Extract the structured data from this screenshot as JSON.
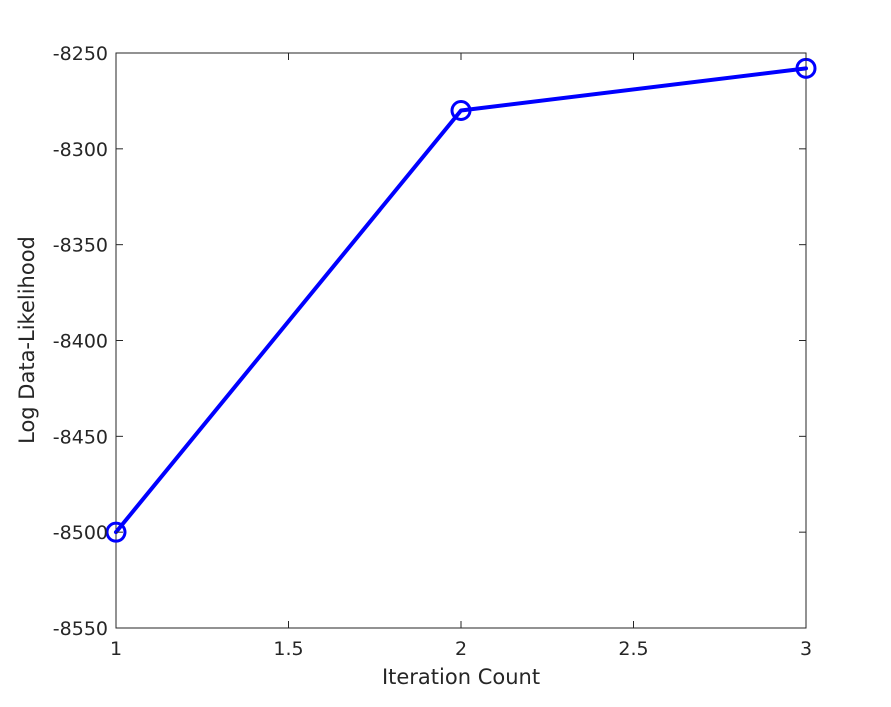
{
  "chart_data": {
    "type": "line",
    "title": "",
    "xlabel": "Iteration Count",
    "ylabel": "Log Data-Likelihood",
    "xlim": [
      1,
      3
    ],
    "ylim": [
      -8550,
      -8250
    ],
    "xticks": [
      1,
      1.5,
      2,
      2.5,
      3
    ],
    "yticks": [
      -8550,
      -8500,
      -8450,
      -8400,
      -8350,
      -8300,
      -8250
    ],
    "xtick_labels": [
      "1",
      "1.5",
      "2",
      "2.5",
      "3"
    ],
    "ytick_labels": [
      "-8550",
      "-8500",
      "-8450",
      "-8400",
      "-8350",
      "-8300",
      "-8250"
    ],
    "grid": false,
    "marker": "circle",
    "series": [
      {
        "color": "#0000ff",
        "x": [
          1,
          2,
          3
        ],
        "y": [
          -8500,
          -8280,
          -8258
        ]
      }
    ]
  }
}
